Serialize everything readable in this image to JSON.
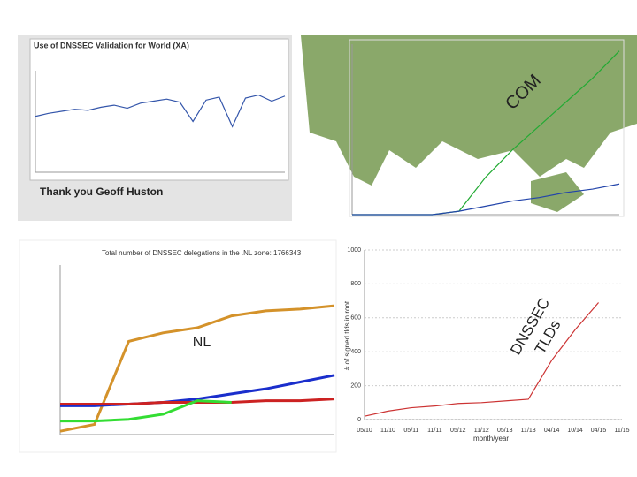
{
  "header": {
    "thanks": "Thank you Geoff Huston",
    "com_label": "COM",
    "nl_label": "NL",
    "tld_label_1": "DNSSEC",
    "tld_label_2": "TLDs"
  },
  "chart_data": [
    {
      "type": "line",
      "title": "Use of DNSSEC Validation for World (XA)",
      "ylim": [
        0,
        100
      ],
      "series": [
        {
          "color": "#3355aa",
          "values": [
            55,
            58,
            60,
            62,
            61,
            64,
            66,
            63,
            68,
            70,
            72,
            69,
            50,
            71,
            74,
            45,
            73,
            76,
            70,
            75
          ]
        }
      ]
    },
    {
      "type": "line",
      "ylim": [
        0,
        100
      ],
      "series": [
        {
          "color": "#22aa33",
          "values": [
            0,
            0,
            0,
            0,
            2,
            22,
            38,
            52,
            66,
            80,
            96
          ]
        },
        {
          "color": "#2244aa",
          "values": [
            0,
            0,
            0,
            0,
            2,
            5,
            8,
            10,
            13,
            15,
            18
          ]
        }
      ]
    },
    {
      "type": "line",
      "title": "Total number of DNSSEC delegations in the .NL zone: 1766343",
      "ylim": [
        0,
        100
      ],
      "series": [
        {
          "color": "#d4922a",
          "values": [
            2,
            6,
            55,
            60,
            63,
            70,
            73,
            74,
            76
          ]
        },
        {
          "color": "#1a2ecc",
          "values": [
            17,
            17,
            18,
            19,
            21,
            24,
            27,
            31,
            35
          ]
        },
        {
          "color": "#cc2222",
          "values": [
            18,
            18,
            18,
            19,
            19,
            19,
            20,
            20,
            21
          ]
        },
        {
          "color": "#33dd33",
          "values": [
            8,
            8,
            9,
            12,
            20,
            19,
            null,
            null,
            null
          ]
        }
      ]
    },
    {
      "type": "line",
      "ylabel": "# of signed tlds in root",
      "xlabel": "month/year",
      "categories": [
        "05/10",
        "11/10",
        "05/11",
        "11/11",
        "05/12",
        "11/12",
        "05/13",
        "11/13",
        "04/14",
        "10/14",
        "04/15",
        "11/15"
      ],
      "ylim": [
        0,
        1000
      ],
      "yticks": [
        0,
        200,
        400,
        600,
        800,
        1000
      ],
      "grid": true,
      "series": [
        {
          "color": "#cc3333",
          "values": [
            20,
            50,
            70,
            80,
            95,
            100,
            110,
            120,
            350,
            530,
            690,
            null
          ]
        }
      ]
    }
  ]
}
